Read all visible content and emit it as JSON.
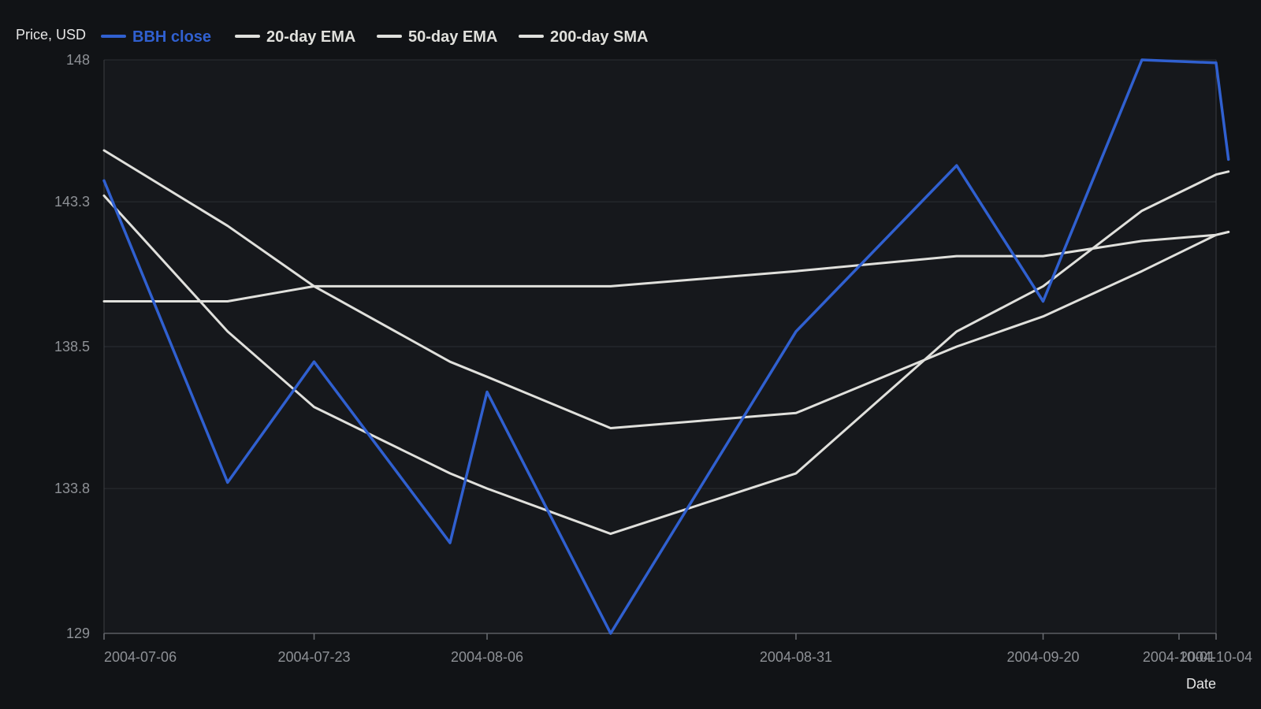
{
  "chart_data": {
    "type": "line",
    "ylabel": "Price, USD",
    "xlabel": "Date",
    "ylim": [
      129,
      148
    ],
    "y_ticks": [
      129,
      133.8,
      138.5,
      143.3,
      148
    ],
    "y_tick_labels": [
      "129",
      "133.8",
      "138.5",
      "143.3",
      "148"
    ],
    "x_domain": [
      "2004-07-06",
      "2004-10-04"
    ],
    "x_ticks": [
      "2004-07-06",
      "2004-07-23",
      "2004-08-06",
      "2004-08-31",
      "2004-09-20",
      "2004-10-01",
      "2004-10-04"
    ],
    "x_tick_labels": [
      "2004-07-06",
      "2004-07-23",
      "2004-08-06",
      "2004-08-31",
      "2004-09-20",
      "2004-10-01",
      "2004-10-04"
    ],
    "grid": true,
    "legend": "top-left",
    "x": [
      "2004-07-06",
      "2004-07-16",
      "2004-07-23",
      "2004-08-03",
      "2004-08-06",
      "2004-08-16",
      "2004-08-31",
      "2004-09-13",
      "2004-09-20",
      "2004-09-28",
      "2004-10-04",
      "2004-10-05"
    ],
    "series": [
      {
        "name": "BBH close",
        "color": "#3060d0",
        "values": [
          144.0,
          134.0,
          138.0,
          132.0,
          137.0,
          129.0,
          139.0,
          144.5,
          140.0,
          148.0,
          147.9,
          144.7
        ]
      },
      {
        "name": "20-day EMA",
        "color": "#e0e0dc",
        "values": [
          143.5,
          139.0,
          136.5,
          134.3,
          133.8,
          132.3,
          134.3,
          139.0,
          140.5,
          143.0,
          144.2,
          144.3
        ]
      },
      {
        "name": "50-day EMA",
        "color": "#e0e0dc",
        "values": [
          145.0,
          142.5,
          140.5,
          138.0,
          137.5,
          135.8,
          136.3,
          138.5,
          139.5,
          141.0,
          142.2,
          142.3
        ]
      },
      {
        "name": "200-day SMA",
        "color": "#e0e0dc",
        "values": [
          140.0,
          140.0,
          140.5,
          140.5,
          140.5,
          140.5,
          141.0,
          141.5,
          141.5,
          142.0,
          142.2,
          142.3
        ]
      }
    ]
  }
}
